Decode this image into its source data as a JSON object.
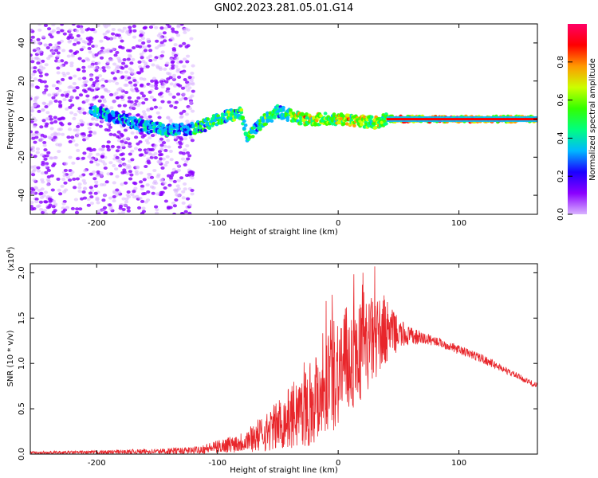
{
  "figure": {
    "title": "GN02.2023.281.05.01.G14"
  },
  "chart_data": [
    {
      "type": "heatmap",
      "xlabel": "Height of straight line (km)",
      "ylabel": "Frequency (Hz)",
      "xlim": [
        -255,
        165
      ],
      "ylim": [
        -50,
        50
      ],
      "x_ticks": [
        -200,
        -100,
        0,
        100
      ],
      "y_ticks": [
        -40,
        -20,
        0,
        20,
        40
      ],
      "colorbar": {
        "label": "Normalized spectral amplitude",
        "range": [
          0,
          1
        ],
        "ticks": [
          "0.0",
          "0.2",
          "0.4",
          "0.6",
          "0.8"
        ],
        "colormap": [
          "#d9b3ff",
          "#8a00ff",
          "#1b00ff",
          "#00b8ff",
          "#00ff80",
          "#33ff00",
          "#ccff00",
          "#ff9900",
          "#ff0000",
          "#ff0066"
        ]
      },
      "ridge": {
        "x": [
          -200,
          -180,
          -160,
          -140,
          -120,
          -110,
          -100,
          -90,
          -80,
          -75,
          -70,
          -60,
          -50,
          -40,
          -30,
          -20,
          -10,
          0,
          20,
          30,
          40,
          60,
          100,
          165
        ],
        "y": [
          4,
          0,
          -4,
          -6,
          -5,
          -3,
          0,
          2,
          3,
          -10,
          -6,
          0,
          4,
          2,
          0,
          0,
          0,
          0,
          -1,
          -2,
          0,
          0,
          0,
          0
        ]
      }
    },
    {
      "type": "line",
      "xlabel": "Height of straight line (km)",
      "ylabel": "SNR (10 * v/v)",
      "y_multiplier": "(x10",
      "y_multiplier_exp": "4",
      "y_multiplier_close": ")",
      "xlim": [
        -255,
        165
      ],
      "ylim": [
        0,
        2.1
      ],
      "x_ticks": [
        -200,
        -100,
        0,
        100
      ],
      "y_ticks": [
        "0.0",
        "0.5",
        "1.0",
        "1.5",
        "2.0"
      ],
      "series_color": "#e8262b",
      "envelope": {
        "x": [
          -255,
          -200,
          -150,
          -120,
          -100,
          -80,
          -60,
          -40,
          -20,
          -10,
          0,
          10,
          20,
          30,
          40,
          50,
          60,
          80,
          100,
          120,
          140,
          165
        ],
        "upper": [
          0.03,
          0.04,
          0.06,
          0.08,
          0.15,
          0.25,
          0.45,
          0.75,
          1.1,
          1.5,
          1.6,
          1.65,
          1.7,
          1.75,
          1.7,
          1.5,
          1.4,
          1.3,
          1.2,
          1.1,
          0.95,
          0.78
        ],
        "lower": [
          0.0,
          0.0,
          0.0,
          0.0,
          0.01,
          0.02,
          0.03,
          0.05,
          0.1,
          0.2,
          0.3,
          0.45,
          0.6,
          0.8,
          1.0,
          1.15,
          1.2,
          1.2,
          1.1,
          1.0,
          0.88,
          0.72
        ]
      }
    }
  ]
}
